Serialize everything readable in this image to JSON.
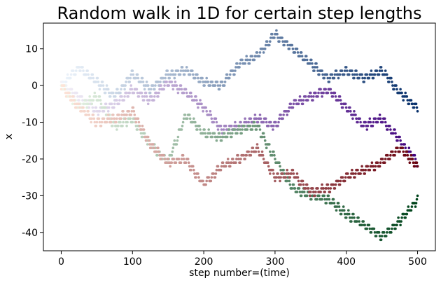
{
  "chart_data": {
    "type": "scatter",
    "title": "Random walk in 1D for certain step lengths",
    "xlabel": "step number=(time)",
    "ylabel": "x",
    "xlim": [
      -25,
      525
    ],
    "ylim": [
      -45,
      17
    ],
    "xticks": [
      0,
      100,
      200,
      300,
      400,
      500
    ],
    "yticks": [
      10,
      0,
      -10,
      -20,
      -30,
      -40
    ],
    "grid": false,
    "legend": "none",
    "series": [
      {
        "colormap": "Blues",
        "color_start": "#eef5fc",
        "color_end": "#08306b",
        "x": [
          0,
          25,
          50,
          75,
          100,
          125,
          150,
          175,
          200,
          225,
          250,
          275,
          300,
          325,
          350,
          375,
          400,
          425,
          450,
          475,
          500
        ],
        "y": [
          0,
          5,
          1,
          -3,
          3,
          -1,
          3,
          4,
          1,
          0,
          6,
          8,
          14,
          10,
          6,
          2,
          4,
          2,
          4,
          -2,
          -6
        ]
      },
      {
        "colormap": "Purples",
        "color_start": "#f3f1f8",
        "color_end": "#3f007d",
        "x": [
          0,
          25,
          50,
          75,
          100,
          125,
          150,
          175,
          200,
          225,
          250,
          275,
          300,
          325,
          350,
          375,
          400,
          425,
          450,
          475,
          500
        ],
        "y": [
          0,
          -3,
          -7,
          -5,
          -1,
          -4,
          1,
          -2,
          -6,
          -12,
          -11,
          -9,
          -11,
          -5,
          -3,
          -1,
          -6,
          -11,
          -9,
          -15,
          -21
        ]
      },
      {
        "colormap": "Greens",
        "color_start": "#edf8ea",
        "color_end": "#00441b",
        "x": [
          0,
          25,
          50,
          75,
          100,
          125,
          150,
          175,
          200,
          225,
          250,
          275,
          300,
          325,
          350,
          375,
          400,
          425,
          450,
          475,
          500
        ],
        "y": [
          0,
          -6,
          -3,
          -11,
          -9,
          -16,
          -21,
          -8,
          -13,
          -14,
          -12,
          -11,
          -20,
          -28,
          -30,
          -31,
          -35,
          -38,
          -41,
          -37,
          -31
        ]
      },
      {
        "colormap": "Reds",
        "color_start": "#fee5d9",
        "color_end": "#67000d",
        "x": [
          0,
          25,
          50,
          75,
          100,
          125,
          150,
          175,
          200,
          225,
          250,
          275,
          300,
          325,
          350,
          375,
          400,
          425,
          450,
          475,
          500
        ],
        "y": [
          0,
          -6,
          -10,
          -9,
          -7,
          -16,
          -21,
          -20,
          -27,
          -22,
          -20,
          -17,
          -25,
          -24,
          -29,
          -28,
          -25,
          -23,
          -21,
          -17,
          -22
        ]
      }
    ]
  }
}
